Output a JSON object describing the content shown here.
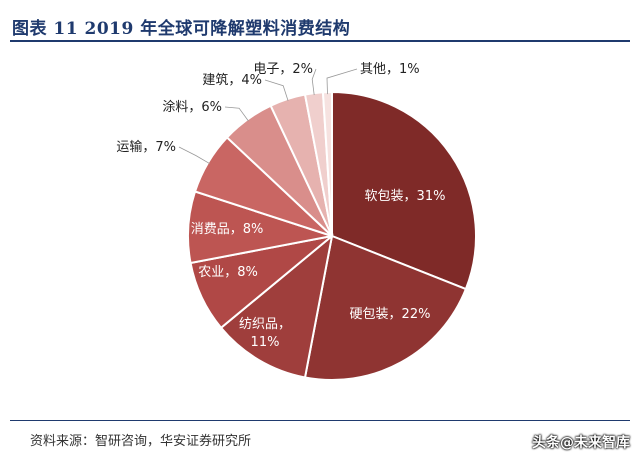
{
  "header": {
    "title": "图表 11 2019 年全球可降解塑料消费结构"
  },
  "footer": {
    "source": "资料来源：智研咨询，华安证券研究所",
    "watermark": "头条@未来智库"
  },
  "chart_data": {
    "type": "pie",
    "title": "图表 11 2019 年全球可降解塑料消费结构",
    "unit": "%",
    "slices": [
      {
        "label": "软包装",
        "text": "软包装，31%",
        "value": 31,
        "color": "#7f2a28"
      },
      {
        "label": "硬包装",
        "text": "硬包装，22%",
        "value": 22,
        "color": "#8f3432"
      },
      {
        "label": "纺织品",
        "text": "纺织品，11%",
        "text_lines": [
          "纺织品，",
          "11%"
        ],
        "value": 11,
        "color": "#9f3e3c"
      },
      {
        "label": "农业",
        "text": "农业，8%",
        "value": 8,
        "color": "#b04846"
      },
      {
        "label": "消费品",
        "text": "消费品，8%",
        "value": 8,
        "color": "#bd5552"
      },
      {
        "label": "运输",
        "text": "运输，7%",
        "value": 7,
        "color": "#c96663"
      },
      {
        "label": "涂料",
        "text": "涂料，6%",
        "value": 6,
        "color": "#d98e8b"
      },
      {
        "label": "建筑",
        "text": "建筑，4%",
        "value": 4,
        "color": "#e6b2af"
      },
      {
        "label": "电子",
        "text": "电子，2%",
        "value": 2,
        "color": "#f0cfcd"
      },
      {
        "label": "其他",
        "text": "其他，1%",
        "value": 1,
        "color": "#f6e2e0"
      }
    ]
  }
}
